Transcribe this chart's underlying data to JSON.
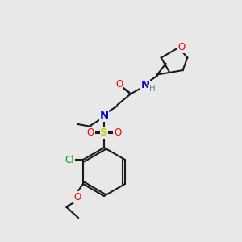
{
  "bg_color": "#e8e8e8",
  "bond_color": "#1a1a1a",
  "bond_lw": 1.5,
  "colors": {
    "C": "#1a1a1a",
    "O": "#ff0000",
    "N": "#0000cc",
    "S": "#cccc00",
    "Cl": "#00aa00",
    "H": "#708090"
  },
  "font_size": 8.5,
  "fig_size": [
    3.0,
    3.0
  ],
  "dpi": 100
}
